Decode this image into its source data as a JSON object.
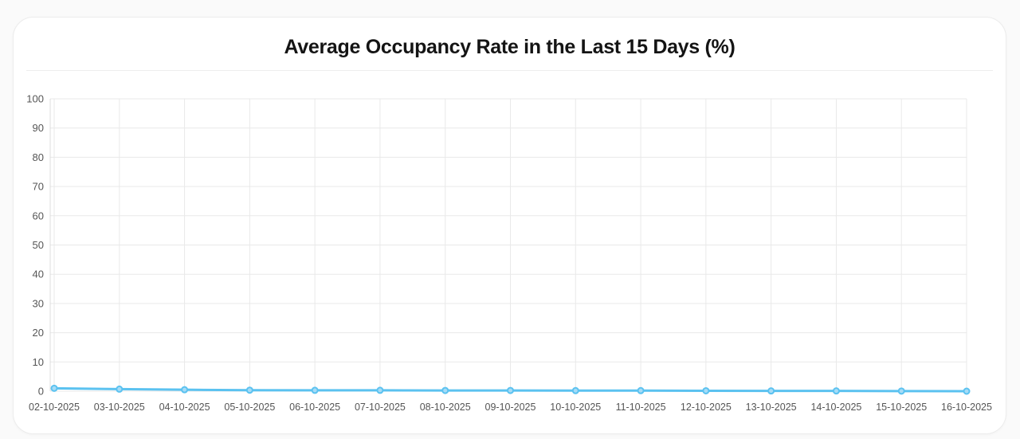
{
  "page": {
    "background": "#fafafa"
  },
  "card": {
    "background": "#ffffff",
    "border_color": "#ececec"
  },
  "chart_data": {
    "type": "line",
    "title": "Average Occupancy Rate in the Last 15 Days (%)",
    "categories": [
      "02-10-2025",
      "03-10-2025",
      "04-10-2025",
      "05-10-2025",
      "06-10-2025",
      "07-10-2025",
      "08-10-2025",
      "09-10-2025",
      "10-10-2025",
      "11-10-2025",
      "12-10-2025",
      "13-10-2025",
      "14-10-2025",
      "15-10-2025",
      "16-10-2025"
    ],
    "values": [
      1.0,
      0.7,
      0.5,
      0.35,
      0.3,
      0.3,
      0.25,
      0.25,
      0.2,
      0.2,
      0.15,
      0.1,
      0.1,
      0.05,
      0.0
    ],
    "xlabel": "",
    "ylabel": "",
    "ylim": [
      0,
      100
    ],
    "ytick_step": 10,
    "grid": true,
    "legend": "none",
    "colors": {
      "line": "#5bc2f0",
      "marker_fill": "#a6dcf7",
      "marker_stroke": "#5bc2f0",
      "grid": "#e9e9e9",
      "axis": "#dcdcdc",
      "tick_label": "#555555",
      "title": "#141414"
    }
  }
}
